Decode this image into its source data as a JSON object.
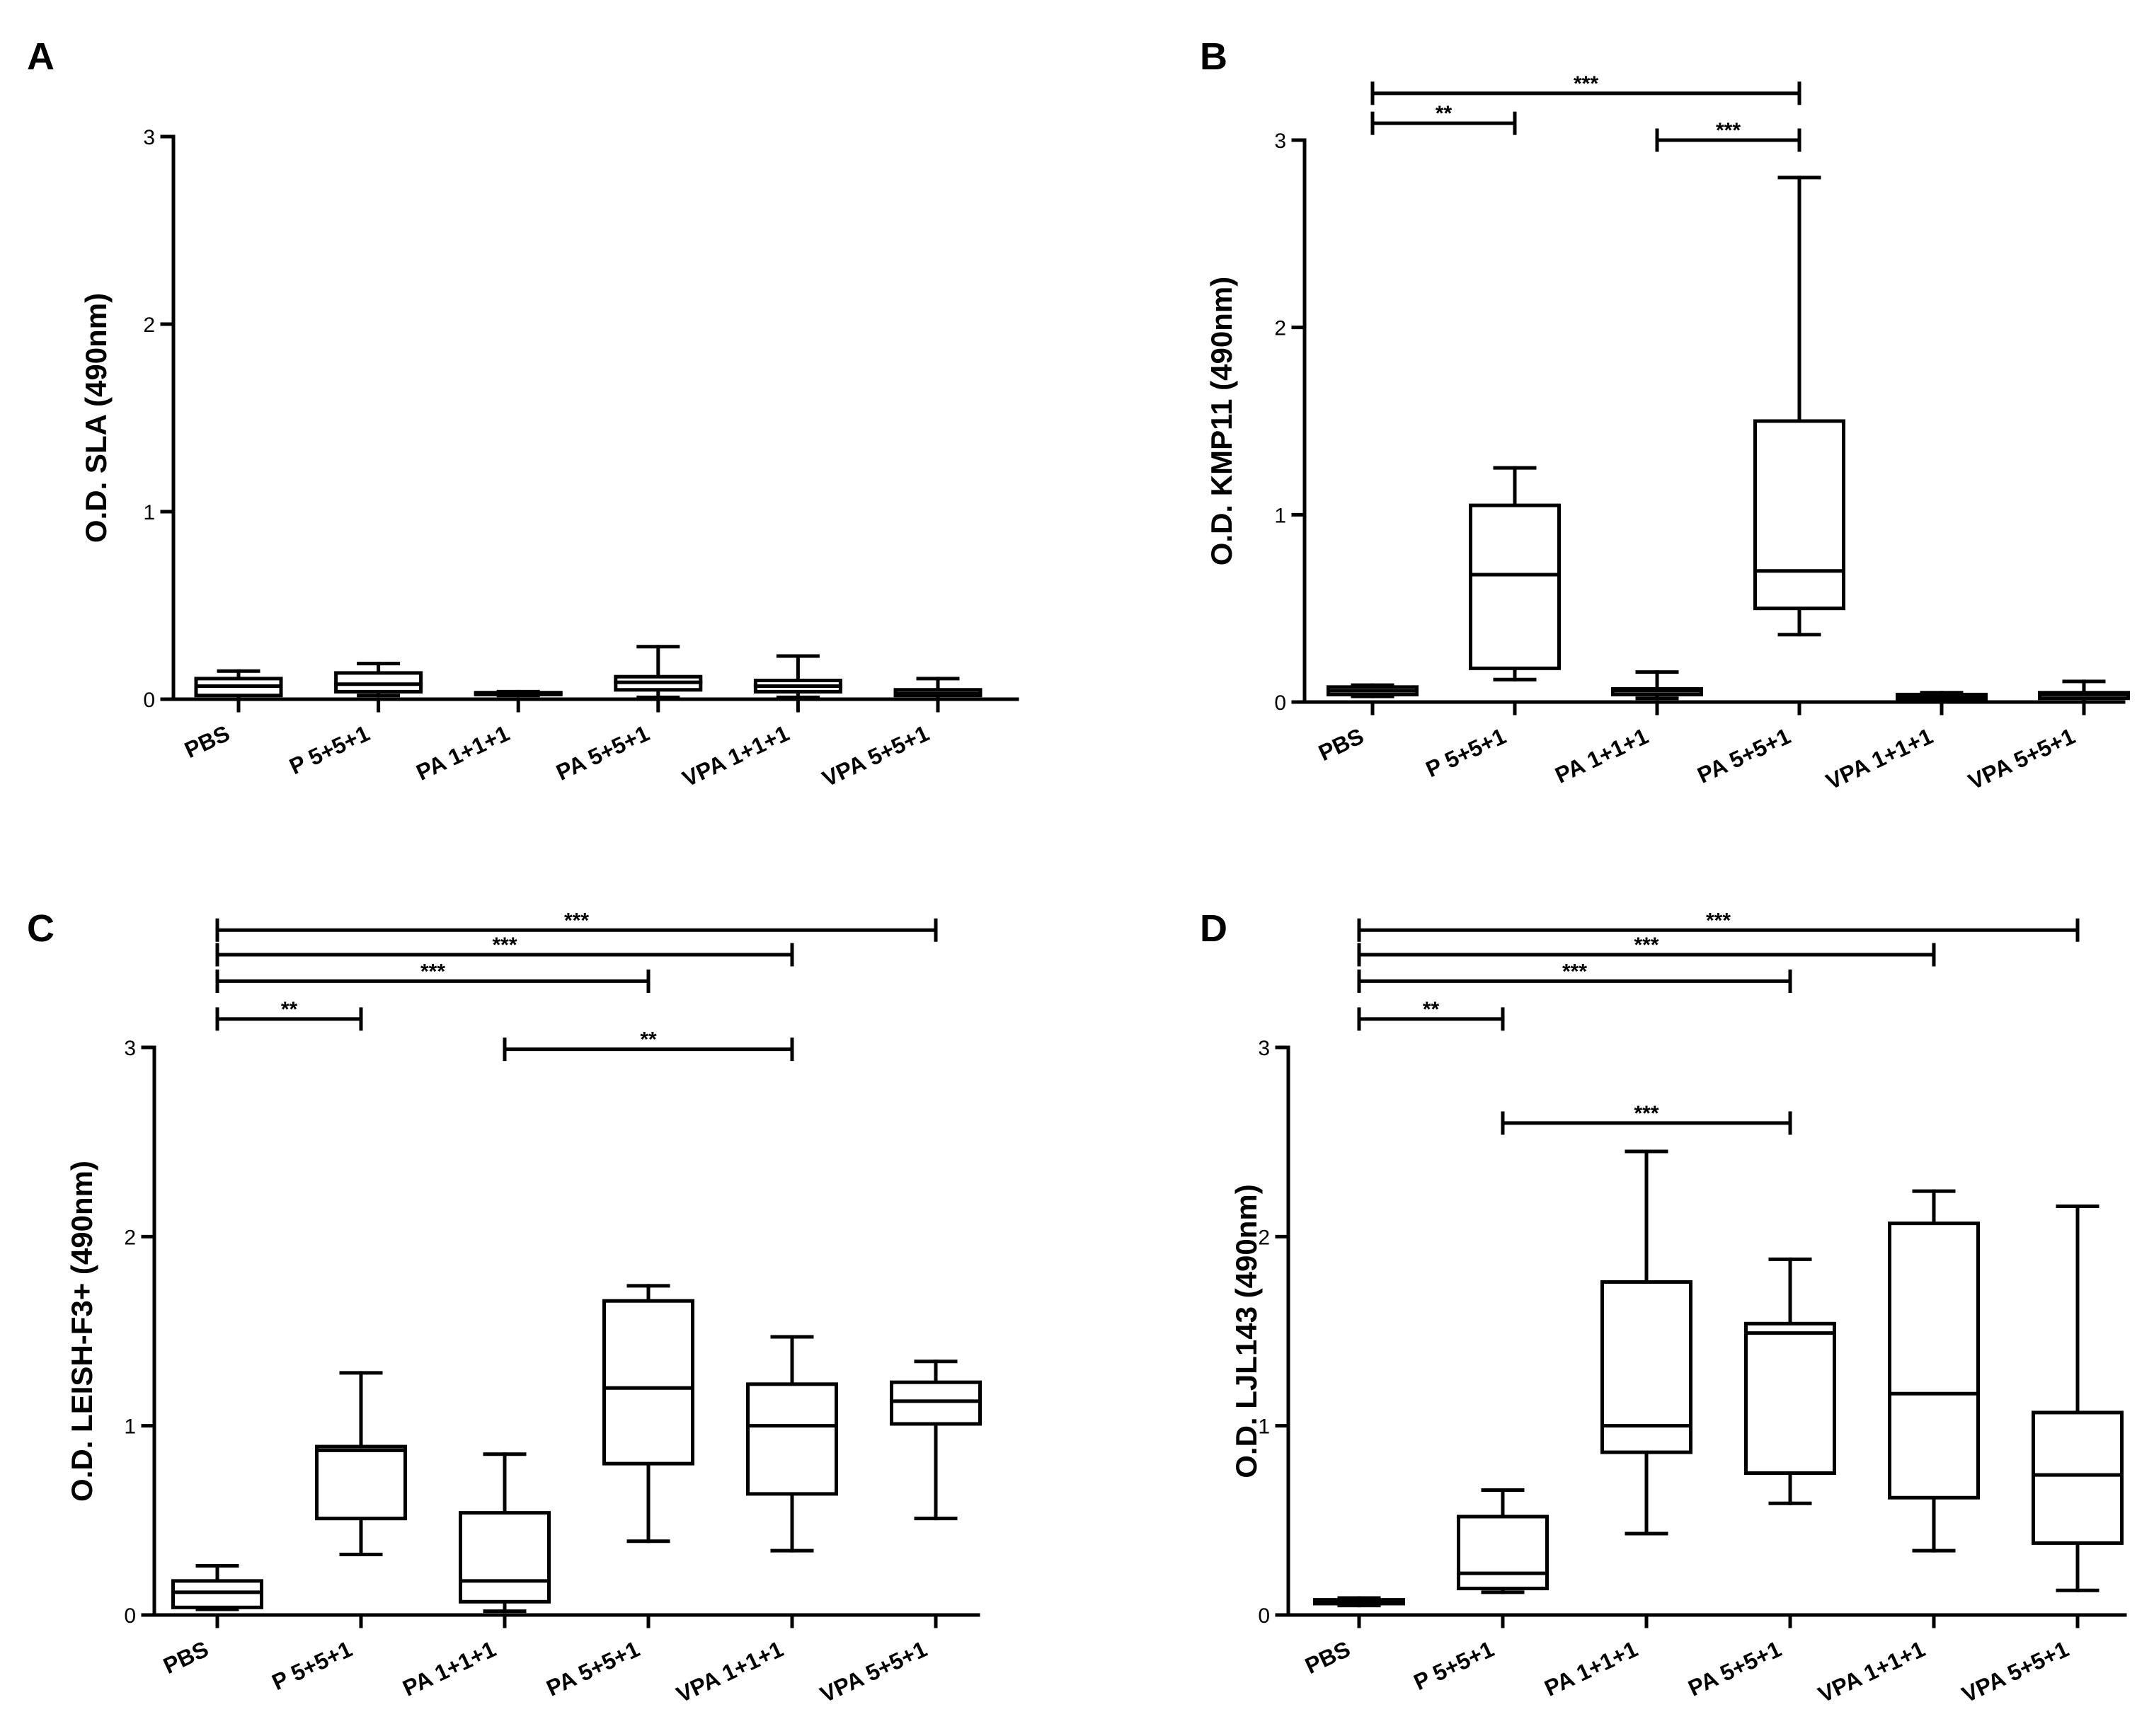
{
  "figure": {
    "panels_order": [
      "A",
      "B",
      "C",
      "D"
    ]
  },
  "chart_data": [
    {
      "panel": "A",
      "type": "box",
      "ylabel": "O.D. SLA (490nm)",
      "ylim": [
        0,
        3
      ],
      "yticks": [
        0,
        1,
        2,
        3
      ],
      "categories": [
        "PBS",
        "P 5+5+1",
        "PA 1+1+1",
        "PA 5+5+1",
        "VPA 1+1+1",
        "VPA 5+5+1"
      ],
      "boxes": [
        {
          "min": 0.0,
          "q1": 0.02,
          "median": 0.07,
          "q3": 0.11,
          "max": 0.15
        },
        {
          "min": 0.02,
          "q1": 0.04,
          "median": 0.08,
          "q3": 0.14,
          "max": 0.19
        },
        {
          "min": 0.02,
          "q1": 0.025,
          "median": 0.03,
          "q3": 0.035,
          "max": 0.04
        },
        {
          "min": 0.01,
          "q1": 0.05,
          "median": 0.09,
          "q3": 0.12,
          "max": 0.28
        },
        {
          "min": 0.01,
          "q1": 0.04,
          "median": 0.07,
          "q3": 0.1,
          "max": 0.23
        },
        {
          "min": 0.0,
          "q1": 0.02,
          "median": 0.03,
          "q3": 0.05,
          "max": 0.11
        }
      ],
      "significance": []
    },
    {
      "panel": "B",
      "type": "box",
      "ylabel": "O.D. KMP11 (490nm)",
      "ylim": [
        0,
        3
      ],
      "yticks": [
        0,
        1,
        2,
        3
      ],
      "categories": [
        "PBS",
        "P 5+5+1",
        "PA 1+1+1",
        "PA 5+5+1",
        "VPA 1+1+1",
        "VPA 5+5+1"
      ],
      "boxes": [
        {
          "min": 0.03,
          "q1": 0.04,
          "median": 0.06,
          "q3": 0.08,
          "max": 0.09
        },
        {
          "min": 0.12,
          "q1": 0.18,
          "median": 0.68,
          "q3": 1.05,
          "max": 1.25
        },
        {
          "min": 0.02,
          "q1": 0.04,
          "median": 0.06,
          "q3": 0.07,
          "max": 0.16
        },
        {
          "min": 0.36,
          "q1": 0.5,
          "median": 0.7,
          "q3": 1.5,
          "max": 2.8
        },
        {
          "min": 0.01,
          "q1": 0.015,
          "median": 0.03,
          "q3": 0.04,
          "max": 0.05
        },
        {
          "min": 0.0,
          "q1": 0.02,
          "median": 0.04,
          "q3": 0.05,
          "max": 0.11
        }
      ],
      "significance": [
        {
          "from": 0,
          "to": 3,
          "stars": "***",
          "y": 3.25
        },
        {
          "from": 0,
          "to": 1,
          "stars": "**",
          "y": 3.09
        },
        {
          "from": 2,
          "to": 3,
          "stars": "***",
          "y": 3.0
        }
      ]
    },
    {
      "panel": "C",
      "type": "box",
      "ylabel": "O.D. LEISH-F3+ (490nm)",
      "ylim": [
        0,
        3
      ],
      "yticks": [
        0,
        1,
        2,
        3
      ],
      "categories": [
        "PBS",
        "P 5+5+1",
        "PA 1+1+1",
        "PA 5+5+1",
        "VPA 1+1+1",
        "VPA 5+5+1"
      ],
      "boxes": [
        {
          "min": 0.03,
          "q1": 0.04,
          "median": 0.12,
          "q3": 0.18,
          "max": 0.26
        },
        {
          "min": 0.32,
          "q1": 0.51,
          "median": 0.87,
          "q3": 0.89,
          "max": 1.28
        },
        {
          "min": 0.02,
          "q1": 0.07,
          "median": 0.18,
          "q3": 0.54,
          "max": 0.85
        },
        {
          "min": 0.39,
          "q1": 0.8,
          "median": 1.2,
          "q3": 1.66,
          "max": 1.74
        },
        {
          "min": 0.34,
          "q1": 0.64,
          "median": 1.0,
          "q3": 1.22,
          "max": 1.47
        },
        {
          "min": 0.51,
          "q1": 1.01,
          "median": 1.13,
          "q3": 1.23,
          "max": 1.34
        }
      ],
      "significance": [
        {
          "from": 0,
          "to": 5,
          "stars": "***",
          "y": 3.62
        },
        {
          "from": 0,
          "to": 4,
          "stars": "***",
          "y": 3.49
        },
        {
          "from": 0,
          "to": 3,
          "stars": "***",
          "y": 3.35
        },
        {
          "from": 0,
          "to": 1,
          "stars": "**",
          "y": 3.15
        },
        {
          "from": 2,
          "to": 4,
          "stars": "**",
          "y": 2.99
        }
      ]
    },
    {
      "panel": "D",
      "type": "box",
      "ylabel": "O.D. LJL143 (490nm)",
      "ylim": [
        0,
        3
      ],
      "yticks": [
        0,
        1,
        2,
        3
      ],
      "categories": [
        "PBS",
        "P 5+5+1",
        "PA 1+1+1",
        "PA 5+5+1",
        "VPA 1+1+1",
        "VPA 5+5+1"
      ],
      "boxes": [
        {
          "min": 0.05,
          "q1": 0.06,
          "median": 0.07,
          "q3": 0.08,
          "max": 0.09
        },
        {
          "min": 0.12,
          "q1": 0.14,
          "median": 0.22,
          "q3": 0.52,
          "max": 0.66
        },
        {
          "min": 0.43,
          "q1": 0.86,
          "median": 1.0,
          "q3": 1.76,
          "max": 2.45
        },
        {
          "min": 0.59,
          "q1": 0.75,
          "median": 1.49,
          "q3": 1.54,
          "max": 1.88
        },
        {
          "min": 0.34,
          "q1": 0.62,
          "median": 1.17,
          "q3": 2.07,
          "max": 2.24
        },
        {
          "min": 0.13,
          "q1": 0.38,
          "median": 0.74,
          "q3": 1.07,
          "max": 2.16
        }
      ],
      "significance": [
        {
          "from": 0,
          "to": 5,
          "stars": "***",
          "y": 3.62
        },
        {
          "from": 0,
          "to": 4,
          "stars": "***",
          "y": 3.49
        },
        {
          "from": 0,
          "to": 3,
          "stars": "***",
          "y": 3.35
        },
        {
          "from": 0,
          "to": 1,
          "stars": "**",
          "y": 3.15
        },
        {
          "from": 1,
          "to": 3,
          "stars": "***",
          "y": 2.6
        }
      ]
    }
  ]
}
